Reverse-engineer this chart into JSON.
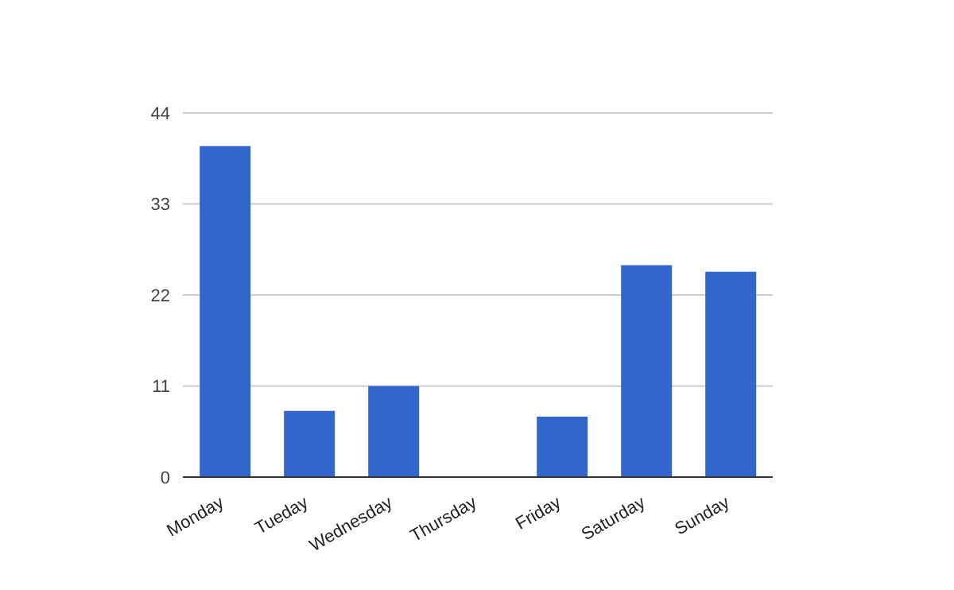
{
  "chart_data": {
    "type": "bar",
    "categories": [
      "Monday",
      "Tueday",
      "Wednesday",
      "Thursday",
      "Friday",
      "Saturday",
      "Sunday"
    ],
    "values": [
      40,
      8,
      11,
      0,
      7.3,
      25.6,
      24.8
    ],
    "color": "#3366cc",
    "ylim": [
      0,
      44
    ],
    "yticks": [
      0,
      11,
      22,
      33,
      44
    ],
    "grid": "y",
    "legend": false
  }
}
